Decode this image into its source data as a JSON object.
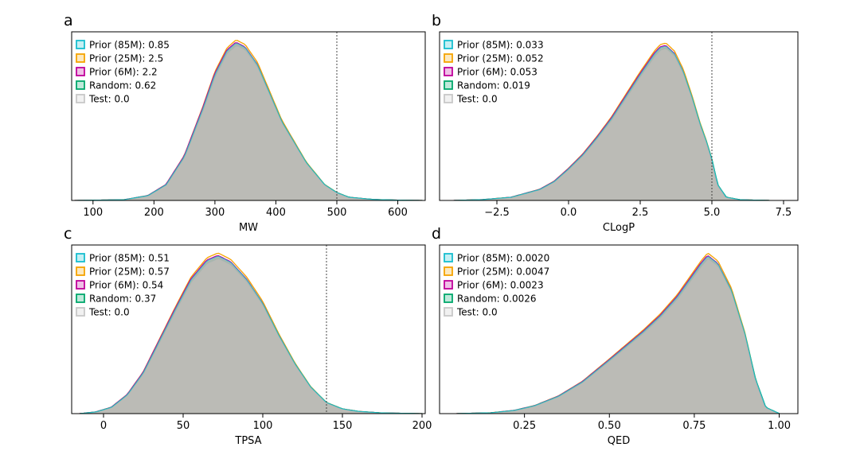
{
  "figure": {
    "series_colors": {
      "Prior (85M)": "#17becf",
      "Prior (25M)": "#f5a300",
      "Prior (6M)": "#c0009a",
      "Random": "#00a86b",
      "Test": "#c8c8c8"
    },
    "fill_color": "#b5b5b0"
  },
  "chart_data": [
    {
      "panel": "a",
      "type": "area",
      "xlabel": "MW",
      "ylabel": "",
      "xlim": [
        65,
        645
      ],
      "xticks": [
        100,
        200,
        300,
        400,
        500,
        600
      ],
      "tick_labels": [
        "100",
        "200",
        "300",
        "400",
        "500",
        "600"
      ],
      "threshold": 500,
      "legend_position": "top-left",
      "x": [
        70,
        150,
        190,
        220,
        250,
        280,
        300,
        320,
        335,
        350,
        370,
        390,
        410,
        430,
        450,
        480,
        500,
        520,
        560,
        600,
        640
      ],
      "test": [
        0,
        0.004,
        0.03,
        0.1,
        0.28,
        0.58,
        0.8,
        0.95,
        1.0,
        0.97,
        0.86,
        0.68,
        0.5,
        0.37,
        0.24,
        0.1,
        0.05,
        0.02,
        0.006,
        0.002,
        0
      ],
      "series": [
        {
          "name": "Prior (85M)",
          "score": "0.85"
        },
        {
          "name": "Prior (25M)",
          "score": "2.5"
        },
        {
          "name": "Prior (6M)",
          "score": "2.2"
        },
        {
          "name": "Random",
          "score": "0.62"
        },
        {
          "name": "Test",
          "score": "0.0"
        }
      ]
    },
    {
      "panel": "b",
      "type": "area",
      "xlabel": "CLogP",
      "ylabel": "",
      "xlim": [
        -4.5,
        8.0
      ],
      "xticks": [
        -2.5,
        0.0,
        2.5,
        5.0,
        7.5
      ],
      "tick_labels": [
        "−2.5",
        "0.0",
        "2.5",
        "5.0",
        "7.5"
      ],
      "threshold": 5.0,
      "legend_position": "top-left",
      "x": [
        -4.0,
        -3.0,
        -2.0,
        -1.0,
        -0.5,
        0.0,
        0.5,
        1.0,
        1.5,
        2.0,
        2.5,
        3.0,
        3.2,
        3.4,
        3.7,
        4.0,
        4.3,
        4.6,
        4.8,
        5.0,
        5.2,
        5.5,
        6.0,
        7.0
      ],
      "test": [
        0,
        0.005,
        0.02,
        0.07,
        0.12,
        0.2,
        0.29,
        0.4,
        0.52,
        0.66,
        0.8,
        0.93,
        0.97,
        0.98,
        0.93,
        0.82,
        0.66,
        0.48,
        0.38,
        0.26,
        0.1,
        0.02,
        0.004,
        0
      ],
      "series": [
        {
          "name": "Prior (85M)",
          "score": "0.033"
        },
        {
          "name": "Prior (25M)",
          "score": "0.052"
        },
        {
          "name": "Prior (6M)",
          "score": "0.053"
        },
        {
          "name": "Random",
          "score": "0.019"
        },
        {
          "name": "Test",
          "score": "0.0"
        }
      ]
    },
    {
      "panel": "c",
      "type": "area",
      "xlabel": "TPSA",
      "ylabel": "",
      "xlim": [
        -20,
        202
      ],
      "xticks": [
        0,
        50,
        100,
        150,
        200
      ],
      "tick_labels": [
        "0",
        "50",
        "100",
        "150",
        "200"
      ],
      "threshold": 140,
      "legend_position": "top-left",
      "x": [
        -15,
        -5,
        5,
        15,
        25,
        35,
        45,
        55,
        65,
        72,
        80,
        90,
        100,
        110,
        120,
        130,
        140,
        150,
        160,
        175,
        200
      ],
      "test": [
        0,
        0.01,
        0.04,
        0.12,
        0.26,
        0.46,
        0.66,
        0.85,
        0.97,
        1.0,
        0.96,
        0.85,
        0.7,
        0.5,
        0.32,
        0.17,
        0.07,
        0.03,
        0.014,
        0.004,
        0
      ],
      "series": [
        {
          "name": "Prior (85M)",
          "score": "0.51"
        },
        {
          "name": "Prior (25M)",
          "score": "0.57"
        },
        {
          "name": "Prior (6M)",
          "score": "0.54"
        },
        {
          "name": "Random",
          "score": "0.37"
        },
        {
          "name": "Test",
          "score": "0.0"
        }
      ]
    },
    {
      "panel": "d",
      "type": "area",
      "xlabel": "QED",
      "ylabel": "",
      "xlim": [
        0.0,
        1.055
      ],
      "xticks": [
        0.25,
        0.5,
        0.75,
        1.0
      ],
      "tick_labels": [
        "0.25",
        "0.50",
        "0.75",
        "1.00"
      ],
      "threshold": null,
      "legend_position": "top-left",
      "x": [
        0.05,
        0.15,
        0.22,
        0.28,
        0.35,
        0.42,
        0.5,
        0.55,
        0.6,
        0.65,
        0.7,
        0.74,
        0.77,
        0.79,
        0.82,
        0.86,
        0.9,
        0.93,
        0.96,
        1.0
      ],
      "test": [
        0,
        0.005,
        0.02,
        0.05,
        0.11,
        0.2,
        0.34,
        0.43,
        0.52,
        0.62,
        0.74,
        0.86,
        0.95,
        1.0,
        0.95,
        0.78,
        0.5,
        0.22,
        0.04,
        0
      ],
      "series": [
        {
          "name": "Prior (85M)",
          "score": "0.0020"
        },
        {
          "name": "Prior (25M)",
          "score": "0.0047"
        },
        {
          "name": "Prior (6M)",
          "score": "0.0023"
        },
        {
          "name": "Random",
          "score": "0.0026"
        },
        {
          "name": "Test",
          "score": "0.0"
        }
      ]
    }
  ]
}
